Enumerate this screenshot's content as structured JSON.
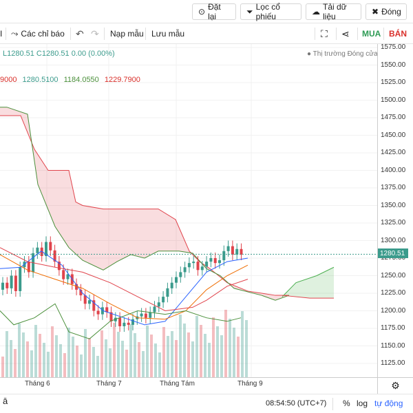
{
  "top_buttons": {
    "reset": "Đặt lại",
    "filter": "Lọc cổ phiếu",
    "download": "Tải dữ liệu",
    "close": "Đóng"
  },
  "toolbar": {
    "indicators": "Các chỉ báo",
    "load": "Nạp mẫu",
    "save": "Lưu mẫu",
    "buy": "MUA",
    "sell": "BÁN",
    "buy_color": "#2e9b55",
    "sell_color": "#d9302b"
  },
  "legend": {
    "line1": "L1280.51  C1280.51  0.00 (0.00%)",
    "line2_a": "9000",
    "line2_b": "1280.5100",
    "line2_c": "1184.0550",
    "line2_d": "1229.7900",
    "market_status": "Thị trường Đóng cửa"
  },
  "price_axis": {
    "ticks": [
      "1575.00",
      "1550.00",
      "1525.00",
      "1500.00",
      "1475.00",
      "1450.00",
      "1425.00",
      "1400.00",
      "1375.00",
      "1350.00",
      "1325.00",
      "1300.00",
      "1275.00",
      "1250.00",
      "1225.00",
      "1200.00",
      "1175.00",
      "1150.00",
      "1125.00"
    ],
    "current_price": "1280.51"
  },
  "time_axis": {
    "ticks": [
      "Tháng 6",
      "Tháng 7",
      "Tháng Tám",
      "Tháng 9"
    ]
  },
  "bottombar": {
    "clock": "08:54:50 (UTC+7)",
    "percent": "%",
    "log": "log",
    "auto": "tự động"
  },
  "colors": {
    "up": "#3b9b8c",
    "down": "#e0434b",
    "accent": "#2962ff"
  },
  "chart_data": {
    "type": "candlestick",
    "ylim": [
      1100,
      1580
    ],
    "months": [
      "Tháng 6",
      "Tháng 7",
      "Tháng Tám",
      "Tháng 9"
    ],
    "last_price": 1280.51
  }
}
